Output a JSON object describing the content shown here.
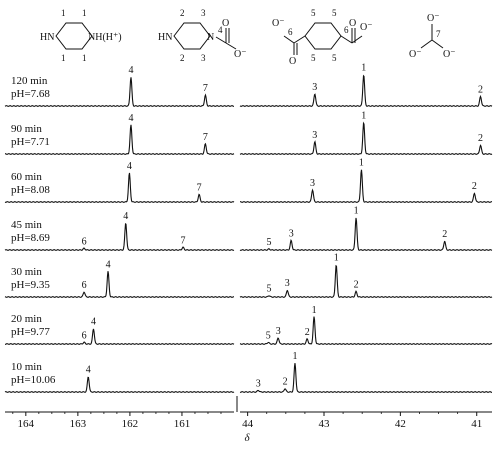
{
  "structures": [
    {
      "name": "piperazine",
      "ring_labels": [
        "1",
        "1",
        "1",
        "1"
      ],
      "left_atom": "HN",
      "right_atom": "NH(H⁺)"
    },
    {
      "name": "piperazine-carbamate",
      "ring_labels": [
        "2",
        "3",
        "2",
        "3"
      ],
      "left_atom": "HN",
      "right_atom": "N",
      "carbonyl_label": "4",
      "oxygen": "O",
      "oxygen_minus": "O⁻"
    },
    {
      "name": "piperazine-dicarbamate",
      "ring_labels": [
        "5",
        "5",
        "5",
        "5"
      ],
      "carbonyl_label_left": "6",
      "carbonyl_label_right": "6",
      "oxygen": "O",
      "oxygen_minus": "O⁻"
    },
    {
      "name": "carbonate",
      "carbon_label": "7",
      "oxygen_minus": "O⁻"
    }
  ],
  "chart_data": {
    "type": "line",
    "xlabel": "δ",
    "x_reversed": true,
    "broken_axis": true,
    "segments": [
      {
        "xlim": [
          164.4,
          160.0
        ],
        "ticks": [
          164,
          163,
          162,
          161
        ]
      },
      {
        "xlim": [
          44.1,
          40.8
        ],
        "ticks": [
          44,
          43,
          42,
          41
        ]
      }
    ],
    "spectra": [
      {
        "time": "120 min",
        "ph": "pH=7.68",
        "peaks": [
          {
            "label": "4",
            "x": 161.98,
            "h": 0.85,
            "seg": 0
          },
          {
            "label": "7",
            "x": 160.55,
            "h": 0.32,
            "seg": 0
          },
          {
            "label": "3",
            "x": 43.12,
            "h": 0.36,
            "seg": 1
          },
          {
            "label": "1",
            "x": 42.48,
            "h": 0.92,
            "seg": 1
          },
          {
            "label": "2",
            "x": 40.95,
            "h": 0.28,
            "seg": 1
          }
        ]
      },
      {
        "time": "90 min",
        "ph": "pH=7.71",
        "peaks": [
          {
            "label": "4",
            "x": 161.98,
            "h": 0.85,
            "seg": 0
          },
          {
            "label": "7",
            "x": 160.55,
            "h": 0.3,
            "seg": 0
          },
          {
            "label": "3",
            "x": 43.12,
            "h": 0.36,
            "seg": 1
          },
          {
            "label": "1",
            "x": 42.48,
            "h": 0.92,
            "seg": 1
          },
          {
            "label": "2",
            "x": 40.95,
            "h": 0.26,
            "seg": 1
          }
        ]
      },
      {
        "time": "60 min",
        "ph": "pH=8.08",
        "peaks": [
          {
            "label": "4",
            "x": 162.01,
            "h": 0.85,
            "seg": 0
          },
          {
            "label": "7",
            "x": 160.67,
            "h": 0.22,
            "seg": 0
          },
          {
            "label": "3",
            "x": 43.15,
            "h": 0.36,
            "seg": 1
          },
          {
            "label": "1",
            "x": 42.51,
            "h": 0.95,
            "seg": 1
          },
          {
            "label": "2",
            "x": 41.03,
            "h": 0.26,
            "seg": 1
          }
        ]
      },
      {
        "time": "45 min",
        "ph": "pH=8.69",
        "peaks": [
          {
            "label": "6",
            "x": 162.88,
            "h": 0.05,
            "seg": 0
          },
          {
            "label": "4",
            "x": 162.08,
            "h": 0.8,
            "seg": 0
          },
          {
            "label": "7",
            "x": 160.98,
            "h": 0.08,
            "seg": 0
          },
          {
            "label": "5",
            "x": 43.72,
            "h": 0.03,
            "seg": 1
          },
          {
            "label": "3",
            "x": 43.43,
            "h": 0.28,
            "seg": 1
          },
          {
            "label": "1",
            "x": 42.58,
            "h": 0.95,
            "seg": 1
          },
          {
            "label": "2",
            "x": 41.42,
            "h": 0.26,
            "seg": 1
          }
        ]
      },
      {
        "time": "30 min",
        "ph": "pH=9.35",
        "peaks": [
          {
            "label": "6",
            "x": 162.88,
            "h": 0.15,
            "seg": 0
          },
          {
            "label": "4",
            "x": 162.42,
            "h": 0.75,
            "seg": 0
          },
          {
            "label": "5",
            "x": 43.72,
            "h": 0.04,
            "seg": 1
          },
          {
            "label": "3",
            "x": 43.48,
            "h": 0.2,
            "seg": 1
          },
          {
            "label": "1",
            "x": 42.84,
            "h": 0.95,
            "seg": 1
          },
          {
            "label": "2",
            "x": 42.58,
            "h": 0.16,
            "seg": 1
          }
        ]
      },
      {
        "time": "20 min",
        "ph": "pH=9.77",
        "peaks": [
          {
            "label": "6",
            "x": 162.88,
            "h": 0.05,
            "seg": 0
          },
          {
            "label": "4",
            "x": 162.7,
            "h": 0.45,
            "seg": 0
          },
          {
            "label": "5",
            "x": 43.73,
            "h": 0.05,
            "seg": 1
          },
          {
            "label": "3",
            "x": 43.6,
            "h": 0.18,
            "seg": 1
          },
          {
            "label": "2",
            "x": 43.22,
            "h": 0.15,
            "seg": 1
          },
          {
            "label": "1",
            "x": 43.13,
            "h": 0.8,
            "seg": 1
          }
        ]
      },
      {
        "time": "10 min",
        "ph": "pH=10.06",
        "peaks": [
          {
            "label": "4",
            "x": 162.8,
            "h": 0.45,
            "seg": 0
          },
          {
            "label": "3",
            "x": 43.86,
            "h": 0.05,
            "seg": 1
          },
          {
            "label": "2",
            "x": 43.51,
            "h": 0.1,
            "seg": 1
          },
          {
            "label": "1",
            "x": 43.38,
            "h": 0.85,
            "seg": 1
          }
        ]
      }
    ]
  }
}
